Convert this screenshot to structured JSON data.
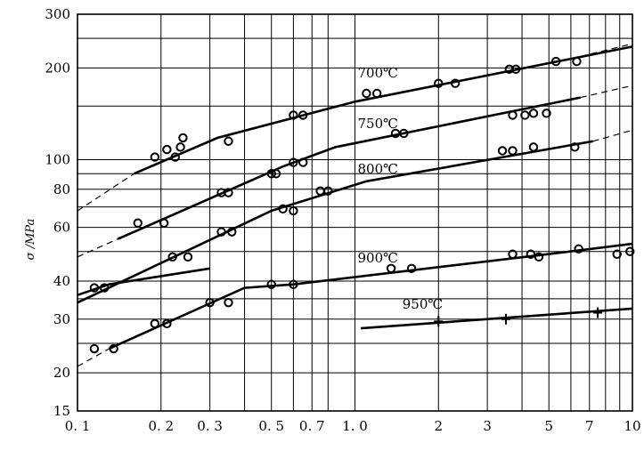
{
  "chart_data": {
    "type": "line",
    "ylabel": "σ /MPa",
    "x_scale": "log",
    "y_scale": "log",
    "xlim": [
      0.1,
      10
    ],
    "ylim": [
      15,
      300
    ],
    "x_ticks": [
      {
        "value": 0.1,
        "label": "0. 1"
      },
      {
        "value": 0.2,
        "label": "0. 2"
      },
      {
        "value": 0.3,
        "label": "0. 3"
      },
      {
        "value": 0.5,
        "label": "0. 5"
      },
      {
        "value": 0.7,
        "label": "0. 7"
      },
      {
        "value": 1.0,
        "label": "1. 0"
      },
      {
        "value": 2,
        "label": "2"
      },
      {
        "value": 3,
        "label": "3"
      },
      {
        "value": 5,
        "label": "5"
      },
      {
        "value": 7,
        "label": "7"
      },
      {
        "value": 10,
        "label": "10"
      }
    ],
    "x_grid": [
      0.1,
      0.2,
      0.3,
      0.4,
      0.5,
      0.6,
      0.7,
      0.8,
      1.0,
      2,
      3,
      4,
      5,
      6,
      7,
      8,
      9,
      10
    ],
    "y_ticks": [
      {
        "value": 15,
        "label": "15"
      },
      {
        "value": 20,
        "label": "20"
      },
      {
        "value": 30,
        "label": "30"
      },
      {
        "value": 40,
        "label": "40"
      },
      {
        "value": 60,
        "label": "60"
      },
      {
        "value": 80,
        "label": "80"
      },
      {
        "value": 100,
        "label": "100"
      },
      {
        "value": 200,
        "label": "200"
      },
      {
        "value": 300,
        "label": "300"
      }
    ],
    "y_grid": [
      15,
      20,
      25,
      30,
      35,
      40,
      50,
      60,
      70,
      80,
      90,
      100,
      150,
      200,
      250,
      300
    ],
    "grid": true,
    "series": [
      {
        "name": "700℃",
        "marker": "circle",
        "points": [
          [
            0.19,
            102
          ],
          [
            0.21,
            108
          ],
          [
            0.225,
            102
          ],
          [
            0.235,
            110
          ],
          [
            0.24,
            118
          ],
          [
            0.35,
            115
          ],
          [
            0.6,
            140
          ],
          [
            0.65,
            140
          ],
          [
            1.1,
            165
          ],
          [
            1.2,
            165
          ],
          [
            2.0,
            178
          ],
          [
            2.3,
            178
          ],
          [
            3.6,
            198
          ],
          [
            3.8,
            198
          ],
          [
            5.3,
            210
          ],
          [
            6.3,
            210
          ]
        ],
        "fit": [
          [
            0.16,
            90
          ],
          [
            0.32,
            118
          ],
          [
            1.0,
            155
          ],
          [
            10,
            235
          ]
        ],
        "ext_low": [
          [
            0.1,
            68
          ],
          [
            0.16,
            90
          ]
        ],
        "ext_high": [
          [
            6.5,
            218
          ],
          [
            10,
            240
          ]
        ]
      },
      {
        "name": "750℃",
        "marker": "circle",
        "points": [
          [
            0.165,
            62
          ],
          [
            0.205,
            62
          ],
          [
            0.33,
            78
          ],
          [
            0.35,
            78
          ],
          [
            0.5,
            90
          ],
          [
            0.52,
            90
          ],
          [
            0.6,
            98
          ],
          [
            0.65,
            98
          ],
          [
            1.4,
            122
          ],
          [
            1.5,
            122
          ],
          [
            3.7,
            140
          ],
          [
            4.1,
            140
          ],
          [
            4.4,
            142
          ],
          [
            4.9,
            142
          ]
        ],
        "fit": [
          [
            0.14,
            55
          ],
          [
            0.55,
            95
          ],
          [
            0.85,
            110
          ],
          [
            6.5,
            160
          ]
        ],
        "ext_low": [
          [
            0.1,
            48
          ],
          [
            0.14,
            55
          ]
        ],
        "ext_high": [
          [
            6.5,
            160
          ],
          [
            10,
            175
          ]
        ]
      },
      {
        "name": "800℃",
        "marker": "circle",
        "points": [
          [
            0.22,
            48
          ],
          [
            0.25,
            48
          ],
          [
            0.33,
            58
          ],
          [
            0.36,
            58
          ],
          [
            0.55,
            69
          ],
          [
            0.6,
            68
          ],
          [
            0.75,
            79
          ],
          [
            0.8,
            79
          ],
          [
            3.4,
            107
          ],
          [
            3.7,
            107
          ],
          [
            4.4,
            110
          ],
          [
            6.2,
            110
          ]
        ],
        "fit": [
          [
            0.1,
            34
          ],
          [
            0.5,
            68
          ],
          [
            1.1,
            85
          ],
          [
            7.2,
            115
          ]
        ],
        "ext_low": [
          [
            0.1,
            34
          ]
        ],
        "ext_high": [
          [
            7.2,
            115
          ],
          [
            10,
            125
          ]
        ]
      },
      {
        "name": "900℃",
        "marker": "circle",
        "points": [
          [
            0.115,
            38
          ],
          [
            0.125,
            38
          ],
          [
            1.35,
            44
          ],
          [
            1.6,
            44
          ],
          [
            3.7,
            49
          ],
          [
            4.3,
            49
          ],
          [
            4.6,
            48
          ],
          [
            6.4,
            51
          ],
          [
            8.8,
            49
          ],
          [
            9.8,
            50
          ]
        ],
        "fit": [
          [
            0.1,
            36
          ],
          [
            0.13,
            39
          ],
          [
            0.3,
            44
          ]
        ],
        "ext_low": [
          [
            0.1,
            36
          ]
        ],
        "ext_high": []
      },
      {
        "name": "",
        "marker": "circle",
        "points": [
          [
            0.115,
            24
          ],
          [
            0.135,
            24
          ],
          [
            0.19,
            29
          ],
          [
            0.21,
            29
          ],
          [
            0.3,
            34
          ],
          [
            0.35,
            34
          ],
          [
            0.5,
            39
          ],
          [
            0.6,
            39
          ]
        ],
        "fit": [
          [
            0.13,
            24
          ],
          [
            0.4,
            38
          ],
          [
            0.6,
            39
          ],
          [
            4.5,
            48.5
          ],
          [
            10,
            53
          ]
        ],
        "ext_low": [
          [
            0.1,
            21
          ],
          [
            0.13,
            24
          ]
        ],
        "ext_high": []
      },
      {
        "name": "950℃",
        "marker": "plus",
        "points": [
          [
            2.0,
            29.5
          ],
          [
            3.5,
            30
          ],
          [
            7.5,
            31.5
          ]
        ],
        "fit": [
          [
            1.05,
            28
          ],
          [
            10,
            32.5
          ]
        ],
        "ext_low": [],
        "ext_high": []
      }
    ]
  }
}
